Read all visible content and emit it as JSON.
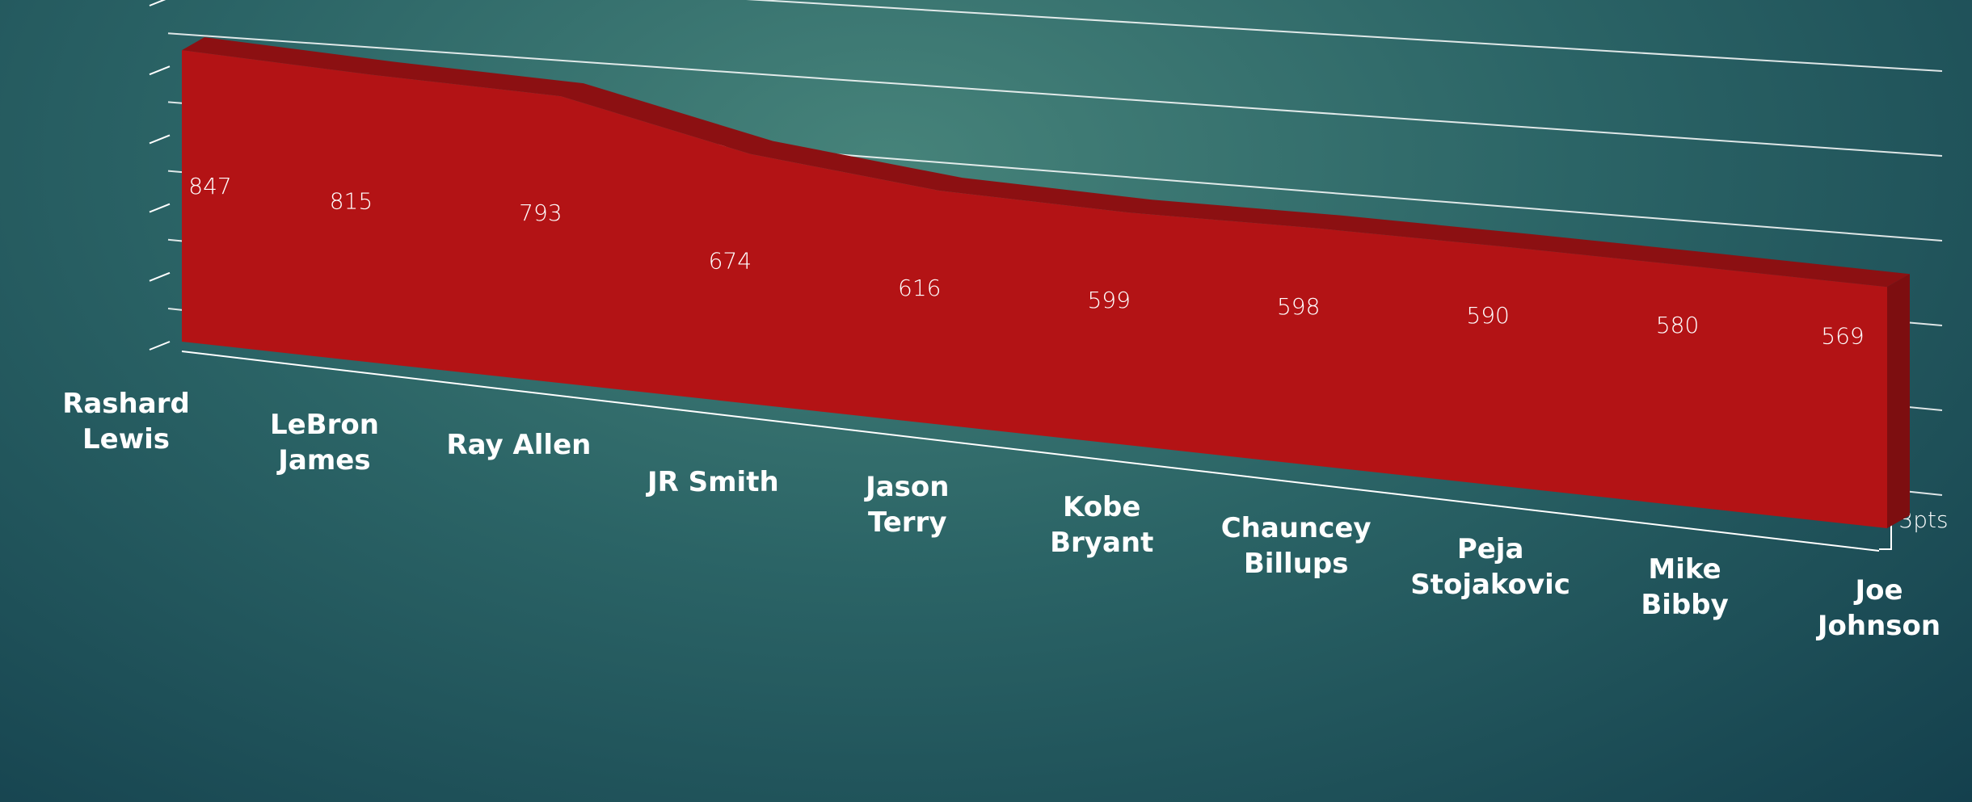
{
  "chart_data": {
    "type": "area",
    "categories": [
      "Rashard Lewis",
      "LeBron James",
      "Ray Allen",
      "JR Smith",
      "Jason Terry",
      "Kobe Bryant",
      "Chauncey Billups",
      "Peja Stojakovic",
      "Mike Bibby",
      "Joe Johnson"
    ],
    "values": [
      847,
      815,
      793,
      674,
      616,
      599,
      598,
      590,
      580,
      569
    ],
    "color": "#b31315",
    "ylim": [
      0,
      1000
    ],
    "yticks": [
      0,
      200,
      400,
      600,
      800,
      1000
    ],
    "grid": true,
    "annotation": "3pts"
  }
}
